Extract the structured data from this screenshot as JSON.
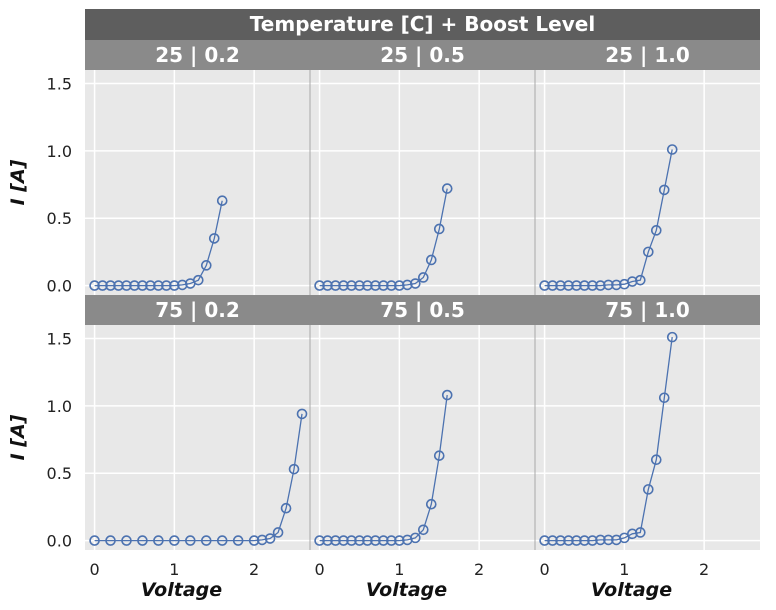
{
  "chart_data": {
    "type": "scatter",
    "title": "Temperature [C] + Boost Level",
    "xlabel": "Voltage",
    "ylabel": "I [A]",
    "xlim": [
      -0.12,
      2.7
    ],
    "ylim": [
      -0.07,
      1.6
    ],
    "xticks": [
      "0",
      "1",
      "2"
    ],
    "yticks": [
      "0.0",
      "0.5",
      "1.0",
      "1.5"
    ],
    "grid": true,
    "marker": "open-circle",
    "series_color": "#4c72b0",
    "panels": [
      {
        "label": "25 | 0.2",
        "x": [
          0,
          0.1,
          0.2,
          0.3,
          0.4,
          0.5,
          0.6,
          0.7,
          0.8,
          0.9,
          1.0,
          1.1,
          1.2,
          1.3,
          1.4,
          1.5,
          1.6
        ],
        "y": [
          0,
          0,
          0,
          0,
          0,
          0,
          0,
          0,
          0,
          0,
          0,
          0.005,
          0.015,
          0.04,
          0.15,
          0.35,
          0.63
        ]
      },
      {
        "label": "25 | 0.5",
        "x": [
          0,
          0.1,
          0.2,
          0.3,
          0.4,
          0.5,
          0.6,
          0.7,
          0.8,
          0.9,
          1.0,
          1.1,
          1.2,
          1.3,
          1.4,
          1.5,
          1.6
        ],
        "y": [
          0,
          0,
          0,
          0,
          0,
          0,
          0,
          0,
          0,
          0,
          0,
          0.005,
          0.015,
          0.06,
          0.19,
          0.42,
          0.72
        ]
      },
      {
        "label": "25 | 1.0",
        "x": [
          0,
          0.1,
          0.2,
          0.3,
          0.4,
          0.5,
          0.6,
          0.7,
          0.8,
          0.9,
          1.0,
          1.1,
          1.2,
          1.3,
          1.4,
          1.5,
          1.6
        ],
        "y": [
          0,
          0,
          0,
          0,
          0,
          0,
          0,
          0,
          0.005,
          0.005,
          0.01,
          0.03,
          0.04,
          0.25,
          0.41,
          0.71,
          1.01
        ]
      },
      {
        "label": "75 | 0.2",
        "x": [
          0,
          0.2,
          0.4,
          0.6,
          0.8,
          1.0,
          1.2,
          1.4,
          1.6,
          1.8,
          2.0,
          2.1,
          2.2,
          2.3,
          2.4,
          2.5,
          2.6
        ],
        "y": [
          0,
          0,
          0,
          0,
          0,
          0,
          0,
          0,
          0,
          0,
          0,
          0.005,
          0.015,
          0.06,
          0.24,
          0.53,
          0.94
        ]
      },
      {
        "label": "75 | 0.5",
        "x": [
          0,
          0.1,
          0.2,
          0.3,
          0.4,
          0.5,
          0.6,
          0.7,
          0.8,
          0.9,
          1.0,
          1.1,
          1.2,
          1.3,
          1.4,
          1.5,
          1.6
        ],
        "y": [
          0,
          0,
          0,
          0,
          0,
          0,
          0,
          0,
          0,
          0,
          0,
          0.005,
          0.02,
          0.08,
          0.27,
          0.63,
          1.08
        ]
      },
      {
        "label": "75 | 1.0",
        "x": [
          0,
          0.1,
          0.2,
          0.3,
          0.4,
          0.5,
          0.6,
          0.7,
          0.8,
          0.9,
          1.0,
          1.1,
          1.2,
          1.3,
          1.4,
          1.5,
          1.6
        ],
        "y": [
          0,
          0,
          0,
          0,
          0,
          0,
          0,
          0.005,
          0.005,
          0.005,
          0.02,
          0.05,
          0.06,
          0.38,
          0.6,
          1.06,
          1.51
        ]
      }
    ]
  }
}
